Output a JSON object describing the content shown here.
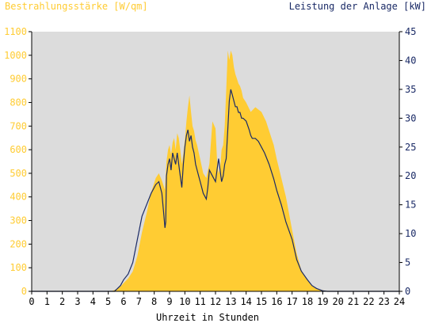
{
  "chart_data": {
    "type": "area",
    "title_left": "Bestrahlungsstärke [W/qm]",
    "title_right": "Leistung der Anlage [kW]",
    "xlabel": "Uhrzeit in Stunden",
    "xlim": [
      0,
      24
    ],
    "x_ticks": [
      "0",
      "1",
      "2",
      "3",
      "4",
      "5",
      "6",
      "7",
      "8",
      "9",
      "10",
      "11",
      "12",
      "13",
      "14",
      "15",
      "16",
      "17",
      "18",
      "19",
      "20",
      "21",
      "22",
      "23",
      "24"
    ],
    "y_left_lim": [
      0,
      1100
    ],
    "y_left_ticks": [
      "0",
      "100",
      "200",
      "300",
      "400",
      "500",
      "600",
      "700",
      "800",
      "900",
      "1000",
      "1100"
    ],
    "y_right_lim": [
      0,
      45
    ],
    "y_right_ticks": [
      "0",
      "5",
      "10",
      "15",
      "20",
      "25",
      "30",
      "35",
      "40",
      "45"
    ],
    "grid": false,
    "colors": {
      "plot_bg": "#dcdcdc",
      "irradiance": "#ffcc33",
      "power": "#1a2a66",
      "left_axis_text": "#ffcc33",
      "right_axis_text": "#1a2a66"
    },
    "series": [
      {
        "axis": "left",
        "x": [
          0,
          5.2,
          5.5,
          5.8,
          6.0,
          6.3,
          6.6,
          6.9,
          7.2,
          7.5,
          7.8,
          8.1,
          8.3,
          8.5,
          8.7,
          8.8,
          8.9,
          9.0,
          9.1,
          9.2,
          9.3,
          9.4,
          9.5,
          9.6,
          9.7,
          9.8,
          9.9,
          10.0,
          10.1,
          10.2,
          10.3,
          10.4,
          10.5,
          10.6,
          10.7,
          10.8,
          10.9,
          11.0,
          11.2,
          11.4,
          11.6,
          11.8,
          12.0,
          12.1,
          12.2,
          12.3,
          12.4,
          12.5,
          12.6,
          12.7,
          12.8,
          12.9,
          13.0,
          13.1,
          13.2,
          13.3,
          13.4,
          13.5,
          13.6,
          13.7,
          13.8,
          14.0,
          14.3,
          14.6,
          14.8,
          15.0,
          15.3,
          15.5,
          15.8,
          16.0,
          16.3,
          16.6,
          17.0,
          17.3,
          17.6,
          18.0,
          18.3,
          18.6,
          19.0,
          19.3,
          19.5,
          24
        ],
        "y": [
          0,
          0,
          8,
          20,
          35,
          55,
          85,
          150,
          250,
          330,
          420,
          480,
          500,
          470,
          430,
          550,
          600,
          620,
          580,
          630,
          650,
          600,
          670,
          650,
          600,
          540,
          580,
          640,
          720,
          780,
          830,
          760,
          700,
          680,
          640,
          620,
          590,
          560,
          500,
          480,
          540,
          720,
          690,
          560,
          500,
          520,
          600,
          620,
          700,
          850,
          1020,
          980,
          1020,
          1000,
          950,
          920,
          900,
          880,
          870,
          850,
          820,
          800,
          760,
          780,
          770,
          760,
          720,
          680,
          620,
          560,
          480,
          400,
          260,
          160,
          90,
          50,
          25,
          10,
          5,
          0,
          0,
          0
        ]
      },
      {
        "axis": "right",
        "x": [
          0,
          5.4,
          5.6,
          5.8,
          6.0,
          6.3,
          6.6,
          6.9,
          7.2,
          7.5,
          7.8,
          8.1,
          8.3,
          8.5,
          8.6,
          8.7,
          8.75,
          8.8,
          8.9,
          9.0,
          9.1,
          9.2,
          9.3,
          9.4,
          9.5,
          9.6,
          9.7,
          9.8,
          9.9,
          10.0,
          10.1,
          10.2,
          10.3,
          10.4,
          10.5,
          10.6,
          10.7,
          10.8,
          10.9,
          11.0,
          11.2,
          11.4,
          11.5,
          11.6,
          11.8,
          12.0,
          12.1,
          12.2,
          12.3,
          12.4,
          12.5,
          12.6,
          12.7,
          12.8,
          12.9,
          13.0,
          13.1,
          13.2,
          13.3,
          13.4,
          13.5,
          13.6,
          13.7,
          13.8,
          14.0,
          14.2,
          14.3,
          14.4,
          14.6,
          14.8,
          15.0,
          15.2,
          15.5,
          15.8,
          16.0,
          16.3,
          16.6,
          17.0,
          17.3,
          17.6,
          18.0,
          18.3,
          18.6,
          19.0,
          19.3,
          19.5,
          24
        ],
        "y": [
          0,
          0,
          0.5,
          1,
          2,
          3,
          5,
          9,
          13,
          15,
          17,
          18.5,
          19,
          17,
          14,
          11,
          12,
          20,
          22,
          23,
          21,
          24,
          23,
          22,
          24,
          22,
          20,
          18,
          22,
          25,
          27,
          28,
          26,
          27,
          25,
          24,
          22,
          21,
          20,
          19,
          17,
          16,
          18,
          21,
          20,
          19,
          21,
          23,
          21,
          19,
          20,
          22,
          23,
          28,
          33,
          35,
          34,
          33,
          32,
          32,
          31,
          31,
          30,
          30,
          29.5,
          28,
          27,
          26.5,
          26.5,
          26,
          25,
          24,
          22,
          19.5,
          17.5,
          15,
          12,
          9,
          5.5,
          3.5,
          2,
          1,
          0.5,
          0.1,
          0,
          0,
          0
        ]
      }
    ]
  }
}
